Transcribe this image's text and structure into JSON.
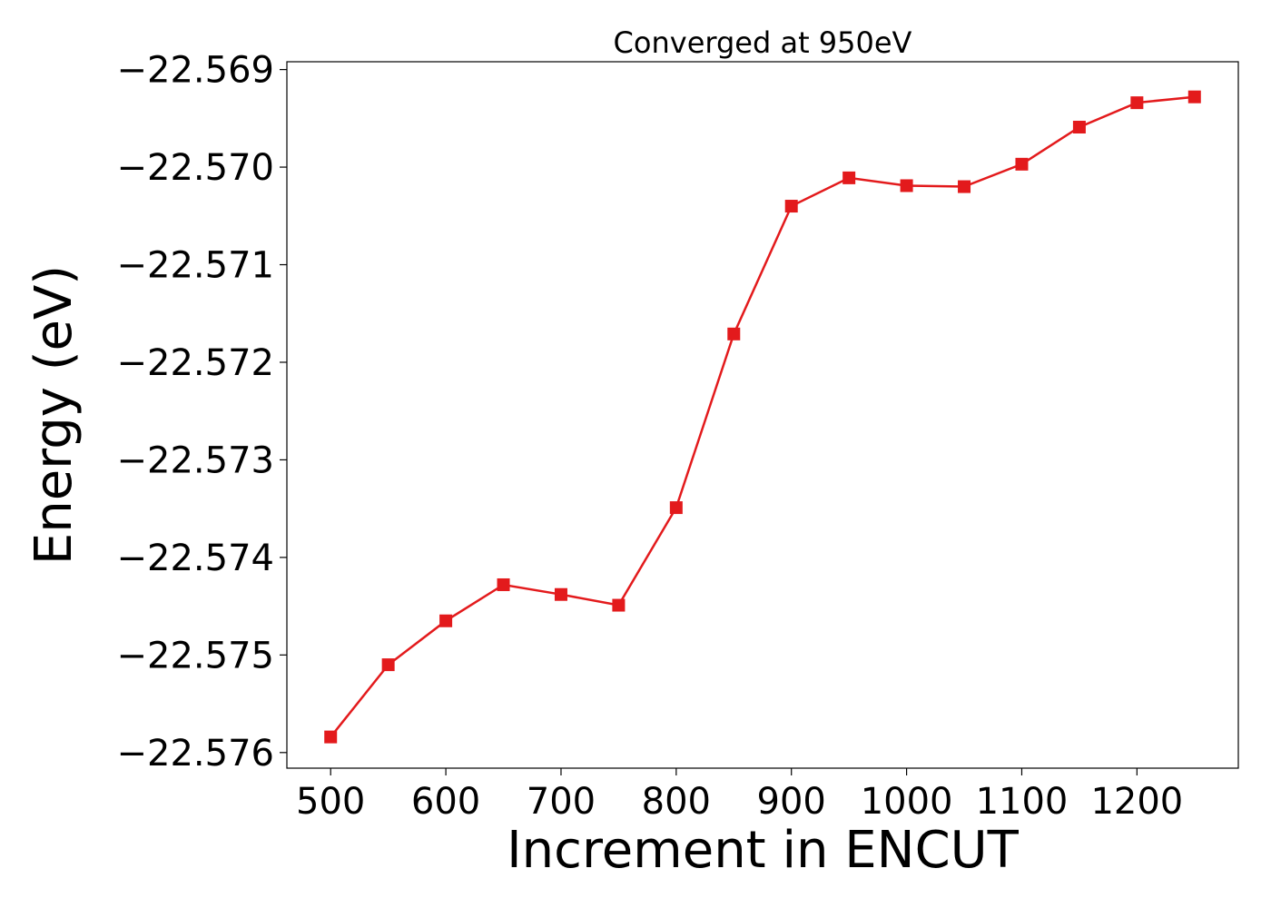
{
  "chart_data": {
    "type": "line",
    "title": "Converged at 950eV",
    "xlabel": "Increment in ENCUT",
    "ylabel": "Energy (eV)",
    "xlim": [
      462,
      1288
    ],
    "ylim": [
      -22.57616,
      -22.56892
    ],
    "xticks": [
      500,
      600,
      700,
      800,
      900,
      1000,
      1100,
      1200
    ],
    "xtick_labels": [
      "500",
      "600",
      "700",
      "800",
      "900",
      "1000",
      "1100",
      "1200"
    ],
    "yticks": [
      -22.569,
      -22.57,
      -22.571,
      -22.572,
      -22.573,
      -22.574,
      -22.575,
      -22.576
    ],
    "ytick_labels": [
      "−22.569",
      "−22.570",
      "−22.571",
      "−22.572",
      "−22.573",
      "−22.574",
      "−22.575",
      "−22.576"
    ],
    "grid": false,
    "legend": "none",
    "series": [
      {
        "color": "#e31a1c",
        "marker": "square",
        "x": [
          500,
          550,
          600,
          650,
          700,
          750,
          800,
          850,
          900,
          950,
          1000,
          1050,
          1100,
          1150,
          1200,
          1250
        ],
        "y": [
          -22.57584,
          -22.5751,
          -22.57465,
          -22.57428,
          -22.57438,
          -22.57449,
          -22.57349,
          -22.57171,
          -22.5704,
          -22.57011,
          -22.57019,
          -22.5702,
          -22.56997,
          -22.56959,
          -22.56934,
          -22.56928
        ]
      }
    ]
  }
}
